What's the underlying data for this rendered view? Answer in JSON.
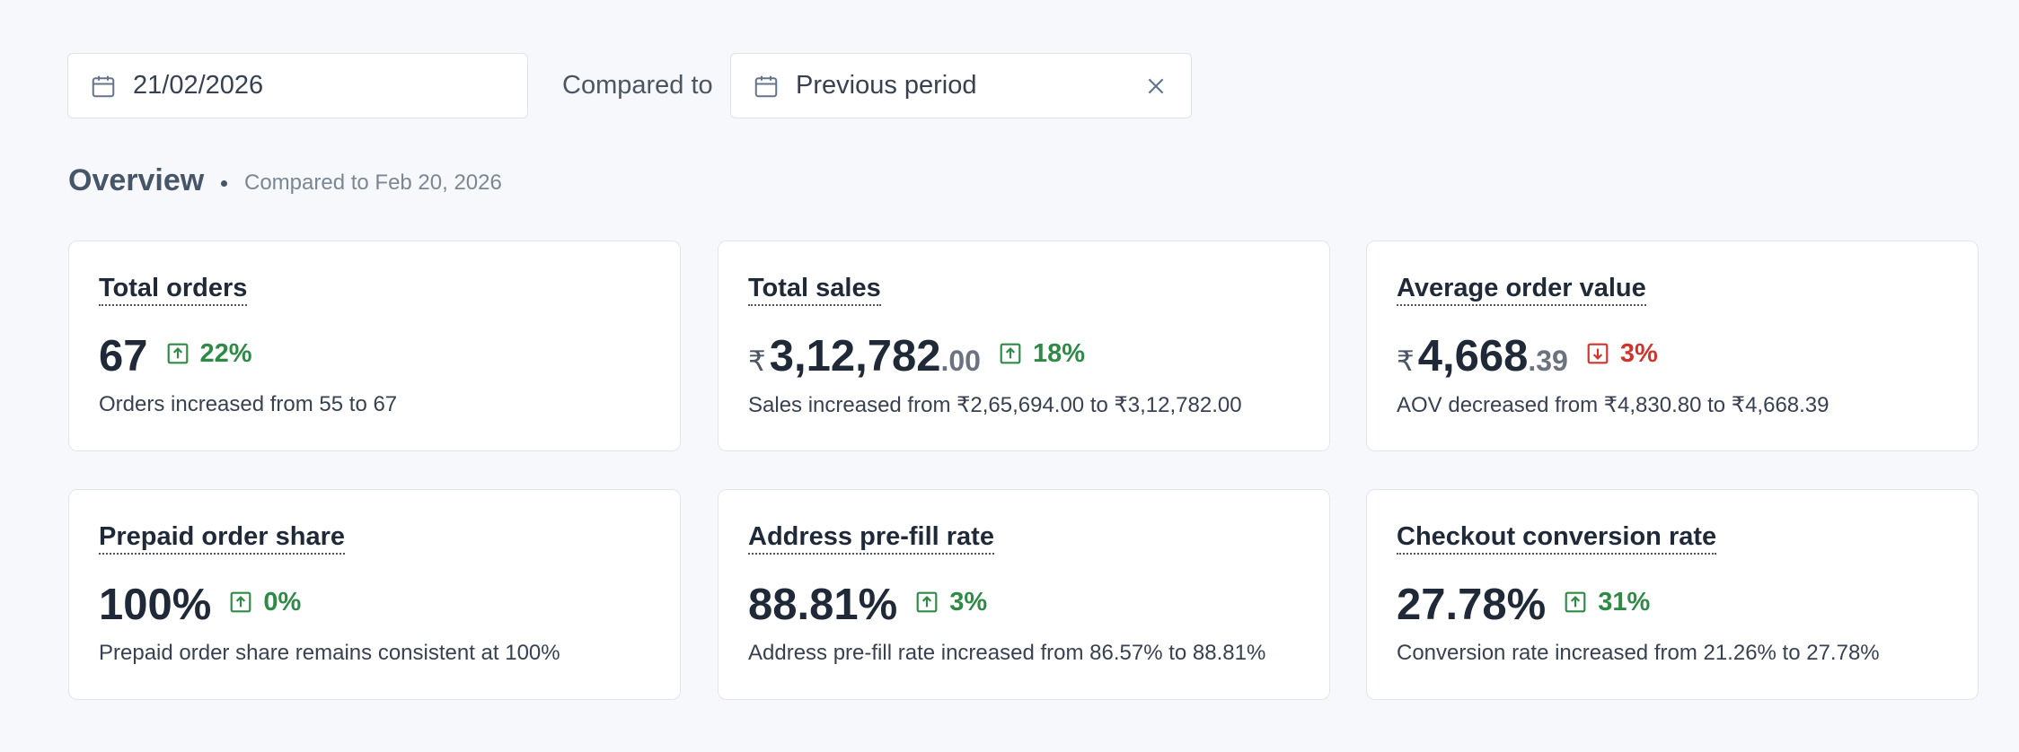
{
  "filters": {
    "date": "21/02/2026",
    "compared_label": "Compared to",
    "comparison": "Previous period"
  },
  "overview": {
    "title": "Overview",
    "subtitle": "Compared to Feb 20, 2026"
  },
  "cards": [
    {
      "title": "Total orders",
      "value": "67",
      "change": "22%",
      "trend": "up",
      "description": "Orders increased from 55 to 67"
    },
    {
      "title": "Total sales",
      "currency": "₹",
      "value": "3,12,782",
      "decimals": ".00",
      "change": "18%",
      "trend": "up",
      "description": "Sales increased from ₹2,65,694.00 to ₹3,12,782.00"
    },
    {
      "title": "Average order value",
      "currency": "₹",
      "value": "4,668",
      "decimals": ".39",
      "change": "3%",
      "trend": "down",
      "description": "AOV decreased from ₹4,830.80 to ₹4,668.39"
    },
    {
      "title": "Prepaid order share",
      "value": "100%",
      "change": "0%",
      "trend": "up",
      "description": "Prepaid order share remains consistent at 100%"
    },
    {
      "title": "Address pre-fill rate",
      "value": "88.81%",
      "change": "3%",
      "trend": "up",
      "description": "Address pre-fill rate increased from 86.57% to 88.81%"
    },
    {
      "title": "Checkout conversion rate",
      "value": "27.78%",
      "change": "31%",
      "trend": "up",
      "description": "Conversion rate increased from 21.26% to 27.78%"
    }
  ]
}
